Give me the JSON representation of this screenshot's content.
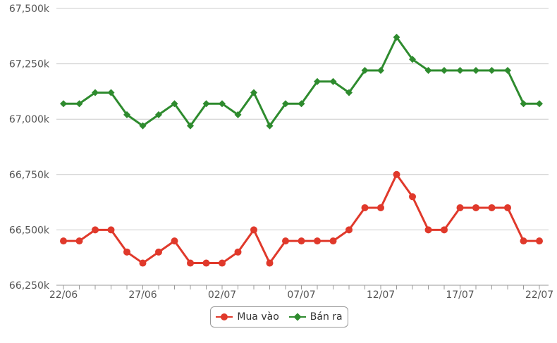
{
  "chart_data": {
    "type": "line",
    "title": "",
    "xlabel": "",
    "ylabel": "",
    "x": [
      "22/06",
      "23/06",
      "24/06",
      "25/06",
      "26/06",
      "27/06",
      "28/06",
      "29/06",
      "30/06",
      "01/07",
      "02/07",
      "03/07",
      "04/07",
      "05/07",
      "06/07",
      "07/07",
      "08/07",
      "09/07",
      "10/07",
      "11/07",
      "12/07",
      "13/07",
      "14/07",
      "15/07",
      "16/07",
      "17/07",
      "18/07",
      "19/07",
      "20/07",
      "21/07",
      "22/07"
    ],
    "x_tick_labels": [
      "22/06",
      "27/06",
      "02/07",
      "07/07",
      "12/07",
      "17/07",
      "22/07"
    ],
    "y_tick_labels": [
      "66,250k",
      "66,500k",
      "66,750k",
      "67,000k",
      "67,250k",
      "67,500k"
    ],
    "ylim": [
      66250,
      67500
    ],
    "grid": true,
    "legend_position": "bottom",
    "series": [
      {
        "name": "Mua vào",
        "color": "#e0392b",
        "marker": "circle",
        "values": [
          66450,
          66450,
          66500,
          66500,
          66400,
          66350,
          66400,
          66450,
          66350,
          66350,
          66350,
          66400,
          66500,
          66350,
          66450,
          66450,
          66450,
          66450,
          66500,
          66600,
          66600,
          66750,
          66650,
          66500,
          66500,
          66600,
          66600,
          66600,
          66600,
          66450,
          66450
        ]
      },
      {
        "name": "Bán ra",
        "color": "#2e8b2e",
        "marker": "diamond",
        "values": [
          67070,
          67070,
          67120,
          67120,
          67020,
          66970,
          67020,
          67070,
          66970,
          67070,
          67070,
          67020,
          67120,
          66970,
          67070,
          67070,
          67170,
          67170,
          67120,
          67220,
          67220,
          67370,
          67270,
          67220,
          67220,
          67220,
          67220,
          67220,
          67220,
          67070,
          67070
        ]
      }
    ]
  }
}
